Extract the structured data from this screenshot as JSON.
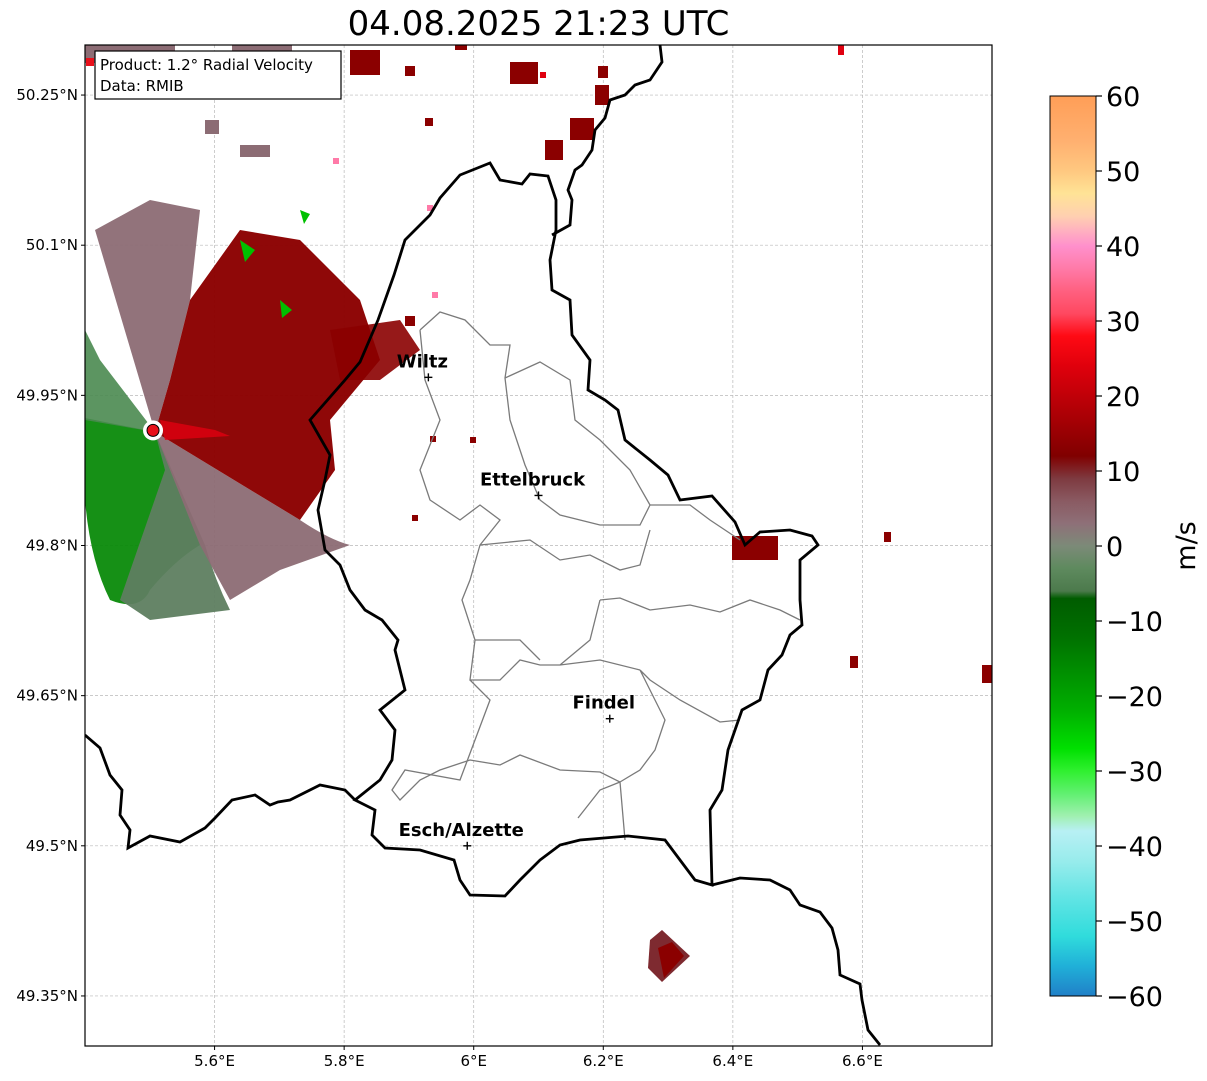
{
  "title": "04.08.2025 21:23 UTC",
  "info_box": {
    "product": "Product: 1.2° Radial Velocity",
    "data_source": "Data: RMIB"
  },
  "map": {
    "lon_range": [
      5.4,
      6.8
    ],
    "lat_range": [
      49.3,
      50.3
    ],
    "lon_ticks": [
      {
        "value": 5.6,
        "label": "5.6°E"
      },
      {
        "value": 5.8,
        "label": "5.8°E"
      },
      {
        "value": 6.0,
        "label": "6°E"
      },
      {
        "value": 6.2,
        "label": "6.2°E"
      },
      {
        "value": 6.4,
        "label": "6.4°E"
      },
      {
        "value": 6.6,
        "label": "6.6°E"
      }
    ],
    "lat_ticks": [
      {
        "value": 50.25,
        "label": "50.25°N"
      },
      {
        "value": 50.1,
        "label": "50.1°N"
      },
      {
        "value": 49.95,
        "label": "49.95°N"
      },
      {
        "value": 49.8,
        "label": "49.8°N"
      },
      {
        "value": 49.65,
        "label": "49.65°N"
      },
      {
        "value": 49.5,
        "label": "49.5°N"
      },
      {
        "value": 49.35,
        "label": "49.35°N"
      }
    ],
    "grid": true,
    "radar_site": {
      "lon": 5.505,
      "lat": 49.915,
      "color": "#e8101a"
    },
    "cities": [
      {
        "name": "Wiltz",
        "lon": 5.93,
        "lat": 49.968
      },
      {
        "name": "Ettelbruck",
        "lon": 6.1,
        "lat": 49.85
      },
      {
        "name": "Findel",
        "lon": 6.21,
        "lat": 49.627
      },
      {
        "name": "Esch/Alzette",
        "lon": 5.99,
        "lat": 49.5
      }
    ]
  },
  "colorbar": {
    "label": "m/s",
    "min": -60,
    "max": 60,
    "ticks": [
      {
        "value": 60,
        "label": "60"
      },
      {
        "value": 50,
        "label": "50"
      },
      {
        "value": 40,
        "label": "40"
      },
      {
        "value": 30,
        "label": "30"
      },
      {
        "value": 20,
        "label": "20"
      },
      {
        "value": 10,
        "label": "10"
      },
      {
        "value": 0,
        "label": "0"
      },
      {
        "value": -10,
        "label": "−10"
      },
      {
        "value": -20,
        "label": "−20"
      },
      {
        "value": -30,
        "label": "−30"
      },
      {
        "value": -40,
        "label": "−40"
      },
      {
        "value": -50,
        "label": "−50"
      },
      {
        "value": -60,
        "label": "−60"
      }
    ],
    "stops": [
      {
        "value": 60,
        "color": "#ff9e57"
      },
      {
        "value": 54,
        "color": "#ffb070"
      },
      {
        "value": 50,
        "color": "#ffc880"
      },
      {
        "value": 47,
        "color": "#ffe396"
      },
      {
        "value": 44,
        "color": "#ffd0b0"
      },
      {
        "value": 42,
        "color": "#ffb0c0"
      },
      {
        "value": 40,
        "color": "#ff90cc"
      },
      {
        "value": 37,
        "color": "#ff7aa8"
      },
      {
        "value": 34,
        "color": "#ff6080"
      },
      {
        "value": 31,
        "color": "#ff4860"
      },
      {
        "value": 28,
        "color": "#ff0a14"
      },
      {
        "value": 24,
        "color": "#e0000c"
      },
      {
        "value": 20,
        "color": "#c00008"
      },
      {
        "value": 16,
        "color": "#a00004"
      },
      {
        "value": 12,
        "color": "#800000"
      },
      {
        "value": 9,
        "color": "#7e3a40"
      },
      {
        "value": 6,
        "color": "#8a5a62"
      },
      {
        "value": 3,
        "color": "#8e7078"
      },
      {
        "value": 0,
        "color": "#7c8a78"
      },
      {
        "value": -3,
        "color": "#5e8a5e"
      },
      {
        "value": -6,
        "color": "#4c7a4c"
      },
      {
        "value": -7,
        "color": "#005c00"
      },
      {
        "value": -12,
        "color": "#007000"
      },
      {
        "value": -17,
        "color": "#009000"
      },
      {
        "value": -22,
        "color": "#00b000"
      },
      {
        "value": -27,
        "color": "#00e000"
      },
      {
        "value": -30,
        "color": "#30f030"
      },
      {
        "value": -33,
        "color": "#60f070"
      },
      {
        "value": -36,
        "color": "#a0f0b0"
      },
      {
        "value": -38,
        "color": "#b8f0f4"
      },
      {
        "value": -42,
        "color": "#98ecec"
      },
      {
        "value": -47,
        "color": "#60e4e4"
      },
      {
        "value": -52,
        "color": "#30dcdc"
      },
      {
        "value": -56,
        "color": "#20b0d8"
      },
      {
        "value": -60,
        "color": "#2080c8"
      }
    ]
  },
  "colors": {
    "outbound_dark": "#8b0000",
    "outbound_bright": "#e00010",
    "near_zero": "#8c6c74",
    "inbound_gray": "#5e7e60",
    "inbound_green": "#008a00",
    "inbound_bright": "#00d000"
  }
}
